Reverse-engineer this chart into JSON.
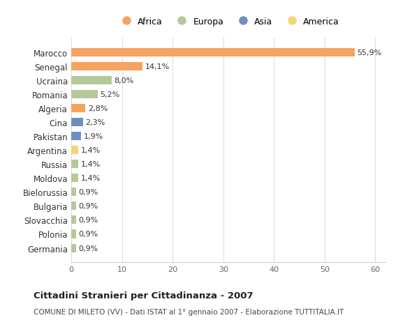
{
  "countries": [
    "Marocco",
    "Senegal",
    "Ucraina",
    "Romania",
    "Algeria",
    "Cina",
    "Pakistan",
    "Argentina",
    "Russia",
    "Moldova",
    "Bielorussia",
    "Bulgaria",
    "Slovacchia",
    "Polonia",
    "Germania"
  ],
  "values": [
    55.9,
    14.1,
    8.0,
    5.2,
    2.8,
    2.3,
    1.9,
    1.4,
    1.4,
    1.4,
    0.9,
    0.9,
    0.9,
    0.9,
    0.9
  ],
  "labels": [
    "55,9%",
    "14,1%",
    "8,0%",
    "5,2%",
    "2,8%",
    "2,3%",
    "1,9%",
    "1,4%",
    "1,4%",
    "1,4%",
    "0,9%",
    "0,9%",
    "0,9%",
    "0,9%",
    "0,9%"
  ],
  "continents": [
    "Africa",
    "Africa",
    "Europa",
    "Europa",
    "Africa",
    "Asia",
    "Asia",
    "America",
    "Europa",
    "Europa",
    "Europa",
    "Europa",
    "Europa",
    "Europa",
    "Europa"
  ],
  "colors": {
    "Africa": "#F4A460",
    "Europa": "#B5C89A",
    "Asia": "#6D8FC0",
    "America": "#F5D57A"
  },
  "legend_order": [
    "Africa",
    "Europa",
    "Asia",
    "America"
  ],
  "title": "Cittadini Stranieri per Cittadinanza - 2007",
  "subtitle": "COMUNE DI MILETO (VV) - Dati ISTAT al 1° gennaio 2007 - Elaborazione TUTTITALIA.IT",
  "xlim": [
    0,
    62
  ],
  "xticks": [
    0,
    10,
    20,
    30,
    40,
    50,
    60
  ],
  "background_color": "#ffffff",
  "grid_color": "#dddddd"
}
